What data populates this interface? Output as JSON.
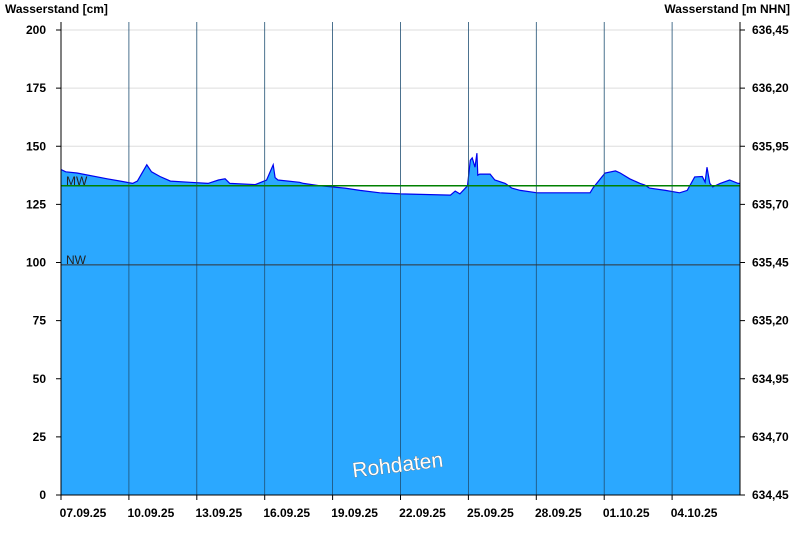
{
  "chart_data": {
    "type": "area",
    "ylabel_left": "Wasserstand [cm]",
    "ylabel_right": "Wasserstand [m NHN]",
    "ylim": [
      0,
      203.4
    ],
    "xlim": [
      "2025-09-07 00:00",
      "2025-10-07 00:00"
    ],
    "yticks_left": [
      "0",
      "25",
      "50",
      "75",
      "100",
      "125",
      "150",
      "175",
      "200"
    ],
    "yticks_right": [
      "634,45",
      "634,70",
      "634,95",
      "635,20",
      "635,45",
      "635,70",
      "635,95",
      "636,20",
      "636,45"
    ],
    "xticks": [
      "07.09.25",
      "10.09.25",
      "13.09.25",
      "16.09.25",
      "19.09.25",
      "22.09.25",
      "25.09.25",
      "28.09.25",
      "01.10.25",
      "04.10.25"
    ],
    "grid": true,
    "reference_lines": [
      {
        "label": "MW",
        "value": 133,
        "color": "#008000"
      },
      {
        "label": "NW",
        "value": 99,
        "color": "#333333"
      }
    ],
    "watermark": "Rohdaten",
    "colors": {
      "fill": "#2ba8ff",
      "line": "#0000ee"
    },
    "series": [
      {
        "points": [
          [
            "2025-09-07 00:00",
            140
          ],
          [
            "2025-09-07 05:00",
            139
          ],
          [
            "2025-09-07 17:00",
            138.5
          ],
          [
            "2025-09-09 01:00",
            136
          ],
          [
            "2025-09-09 15:00",
            135
          ],
          [
            "2025-09-10 04:00",
            134
          ],
          [
            "2025-09-10 09:00",
            135
          ],
          [
            "2025-09-10 19:00",
            142
          ],
          [
            "2025-09-11 00:00",
            139
          ],
          [
            "2025-09-11 09:00",
            137
          ],
          [
            "2025-09-11 20:00",
            135
          ],
          [
            "2025-09-12 17:00",
            134.5
          ],
          [
            "2025-09-13 12:00",
            134
          ],
          [
            "2025-09-13 23:00",
            135.5
          ],
          [
            "2025-09-14 06:00",
            136
          ],
          [
            "2025-09-14 11:00",
            134
          ],
          [
            "2025-09-15 14:00",
            133.5
          ],
          [
            "2025-09-16 02:00",
            135.5
          ],
          [
            "2025-09-16 09:00",
            142
          ],
          [
            "2025-09-16 11:00",
            136.5
          ],
          [
            "2025-09-16 14:00",
            135.5
          ],
          [
            "2025-09-17 13:00",
            134.5
          ],
          [
            "2025-09-17 17:00",
            134
          ],
          [
            "2025-09-18 11:00",
            133
          ],
          [
            "2025-09-19 13:00",
            132
          ],
          [
            "2025-09-20 05:00",
            131
          ],
          [
            "2025-09-21 02:00",
            130
          ],
          [
            "2025-09-22 00:00",
            129.5
          ],
          [
            "2025-09-24 05:00",
            129
          ],
          [
            "2025-09-24 10:00",
            130.7
          ],
          [
            "2025-09-24 15:00",
            129.5
          ],
          [
            "2025-09-24 23:00",
            133
          ],
          [
            "2025-09-25 02:00",
            144
          ],
          [
            "2025-09-25 04:00",
            145
          ],
          [
            "2025-09-25 07:00",
            141
          ],
          [
            "2025-09-25 09:00",
            147
          ],
          [
            "2025-09-25 10:00",
            137.6
          ],
          [
            "2025-09-25 12:00",
            138
          ],
          [
            "2025-09-25 23:00",
            138
          ],
          [
            "2025-09-26 04:00",
            135.5
          ],
          [
            "2025-09-26 15:00",
            134
          ],
          [
            "2025-09-26 22:00",
            132
          ],
          [
            "2025-09-27 07:00",
            131
          ],
          [
            "2025-09-28 01:00",
            130
          ],
          [
            "2025-09-30 09:00",
            130
          ],
          [
            "2025-09-30 12:00",
            132
          ],
          [
            "2025-09-30 20:00",
            136
          ],
          [
            "2025-10-01 01:00",
            138.5
          ],
          [
            "2025-10-01 12:00",
            139.4
          ],
          [
            "2025-10-01 17:00",
            138.5
          ],
          [
            "2025-10-02 03:00",
            136
          ],
          [
            "2025-10-02 14:00",
            134
          ],
          [
            "2025-10-02 19:00",
            133.3
          ],
          [
            "2025-10-03 00:00",
            132
          ],
          [
            "2025-10-03 17:00",
            131
          ],
          [
            "2025-10-04 08:00",
            130
          ],
          [
            "2025-10-04 16:00",
            131
          ],
          [
            "2025-10-05 00:00",
            136.8
          ],
          [
            "2025-10-05 08:00",
            137
          ],
          [
            "2025-10-05 11:00",
            134.6
          ],
          [
            "2025-10-05 13:00",
            141
          ],
          [
            "2025-10-05 16:00",
            134
          ],
          [
            "2025-10-05 19:00",
            132.5
          ],
          [
            "2025-10-06 03:00",
            134
          ],
          [
            "2025-10-06 13:00",
            135.5
          ],
          [
            "2025-10-06 22:00",
            134
          ]
        ]
      }
    ]
  }
}
